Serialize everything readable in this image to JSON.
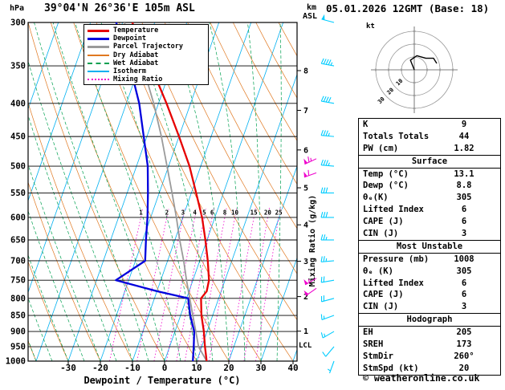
{
  "header": {
    "pressure_unit": "hPa",
    "station_title": "39°04'N 26°36'E 105m ASL",
    "altitude_unit_line1": "km",
    "altitude_unit_line2": "ASL",
    "run_datetime": "05.01.2026 12GMT (Base: 18)"
  },
  "legend": {
    "items": [
      {
        "label": "Temperature",
        "color": "#e60000",
        "style": "solid",
        "thick": true
      },
      {
        "label": "Dewpoint",
        "color": "#0000dd",
        "style": "solid",
        "thick": true
      },
      {
        "label": "Parcel Trajectory",
        "color": "#9a9a9a",
        "style": "solid",
        "thick": true
      },
      {
        "label": "Dry Adiabat",
        "color": "#e07820",
        "style": "solid",
        "thick": false
      },
      {
        "label": "Wet Adiabat",
        "color": "#00a050",
        "style": "dashed",
        "thick": false
      },
      {
        "label": "Isotherm",
        "color": "#00b0f0",
        "style": "solid",
        "thick": false
      },
      {
        "label": "Mixing Ratio",
        "color": "#ee00cc",
        "style": "dotted",
        "thick": false
      }
    ]
  },
  "axes": {
    "pressure_ticks": [
      300,
      350,
      400,
      450,
      500,
      550,
      600,
      650,
      700,
      750,
      800,
      850,
      900,
      950,
      1000
    ],
    "temp_ticks": [
      -30,
      -20,
      -10,
      0,
      10,
      20,
      30,
      40
    ],
    "xlabel": "Dewpoint / Temperature (°C)",
    "km_ticks": [
      8,
      7,
      6,
      5,
      4,
      3,
      2,
      1
    ],
    "mixing_ratio_axis_label": "Mixing Ratio (g/kg)",
    "mixing_ratio_values": [
      1,
      2,
      3,
      4,
      5,
      6,
      8,
      10,
      15,
      20,
      25
    ],
    "lcl_label": "LCL"
  },
  "chart_data": {
    "type": "line",
    "title": "Skew-T log-P sounding",
    "pressure_levels_hPa": [
      1000,
      950,
      900,
      850,
      800,
      780,
      750,
      700,
      650,
      600,
      550,
      500,
      450,
      400,
      350,
      300
    ],
    "series": [
      {
        "name": "Temperature",
        "unit": "°C",
        "color": "#e60000",
        "values": [
          13.1,
          11,
          9,
          6.5,
          4.5,
          5.5,
          5,
          2.5,
          -0.5,
          -4,
          -8.5,
          -13.5,
          -20,
          -27.5,
          -36.5,
          -47
        ]
      },
      {
        "name": "Dewpoint",
        "unit": "°C",
        "color": "#0000dd",
        "values": [
          8.8,
          7.5,
          6,
          3,
          0.5,
          -10,
          -24,
          -17,
          -19,
          -21,
          -23.5,
          -26.5,
          -31,
          -36,
          -43,
          -52
        ]
      },
      {
        "name": "Parcel Trajectory",
        "unit": "°C",
        "color": "#9a9a9a",
        "values": [
          13.1,
          9,
          6.5,
          3.8,
          1,
          -0.2,
          -2,
          -5,
          -8.5,
          -12,
          -16,
          -20.5,
          -25.5,
          -31.5,
          -39,
          -49.5
        ]
      }
    ],
    "x_range_C": [
      -30,
      40
    ],
    "pressure_range_hPa": [
      1000,
      300
    ],
    "grid": [
      "isotherms",
      "dry adiabats",
      "wet adiabats",
      "mixing ratio lines",
      "isobars"
    ]
  },
  "wind_barbs": {
    "unit": "kt",
    "color": "#00ccff",
    "levels": [
      {
        "p": 1000,
        "dir": 200,
        "spd": 5
      },
      {
        "p": 950,
        "dir": 220,
        "spd": 10
      },
      {
        "p": 900,
        "dir": 240,
        "spd": 15
      },
      {
        "p": 850,
        "dir": 250,
        "spd": 15
      },
      {
        "p": 800,
        "dir": 255,
        "spd": 20
      },
      {
        "p": 750,
        "dir": 260,
        "spd": 20
      },
      {
        "p": 700,
        "dir": 265,
        "spd": 25
      },
      {
        "p": 650,
        "dir": 270,
        "spd": 25
      },
      {
        "p": 600,
        "dir": 270,
        "spd": 30
      },
      {
        "p": 550,
        "dir": 270,
        "spd": 30
      },
      {
        "p": 500,
        "dir": 275,
        "spd": 35
      },
      {
        "p": 450,
        "dir": 275,
        "spd": 35
      },
      {
        "p": 400,
        "dir": 280,
        "spd": 40
      },
      {
        "p": 350,
        "dir": 280,
        "spd": 45
      },
      {
        "p": 300,
        "dir": 285,
        "spd": 50
      }
    ],
    "magenta_color": "#ee00cc",
    "magenta_levels": [
      {
        "p": 487,
        "dir": 245,
        "spd": 65
      },
      {
        "p": 512,
        "dir": 250,
        "spd": 60
      },
      {
        "p": 745,
        "dir": 240,
        "spd": 55
      },
      {
        "p": 772,
        "dir": 235,
        "spd": 50
      }
    ]
  },
  "hodograph": {
    "unit_label": "kt",
    "ring_radii_kt": [
      10,
      20,
      30
    ],
    "ring_labels": [
      "10",
      "20",
      "30"
    ],
    "trace_kt": [
      [
        0,
        0
      ],
      [
        -3,
        7.5
      ],
      [
        2,
        11
      ],
      [
        9,
        9
      ],
      [
        15,
        9
      ],
      [
        17.5,
        5
      ]
    ]
  },
  "indices": {
    "sections": [
      {
        "title": null,
        "rows": [
          [
            "K",
            "9"
          ],
          [
            "Totals Totals",
            "44"
          ],
          [
            "PW (cm)",
            "1.82"
          ]
        ]
      },
      {
        "title": "Surface",
        "rows": [
          [
            "Temp (°C)",
            "13.1"
          ],
          [
            "Dewp (°C)",
            "8.8"
          ],
          [
            "θₑ(K)",
            "305"
          ],
          [
            "Lifted Index",
            "6"
          ],
          [
            "CAPE (J)",
            "6"
          ],
          [
            "CIN (J)",
            "3"
          ]
        ]
      },
      {
        "title": "Most Unstable",
        "rows": [
          [
            "Pressure (mb)",
            "1008"
          ],
          [
            "θₑ (K)",
            "305"
          ],
          [
            "Lifted Index",
            "6"
          ],
          [
            "CAPE (J)",
            "6"
          ],
          [
            "CIN (J)",
            "3"
          ]
        ]
      },
      {
        "title": "Hodograph",
        "rows": [
          [
            "EH",
            "205"
          ],
          [
            "SREH",
            "173"
          ],
          [
            "StmDir",
            "260°"
          ],
          [
            "StmSpd (kt)",
            "20"
          ]
        ]
      }
    ]
  },
  "footer": {
    "copyright": "© weatheronline.co.uk"
  }
}
